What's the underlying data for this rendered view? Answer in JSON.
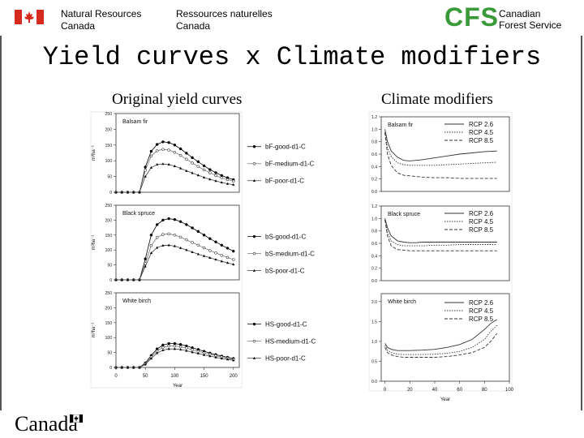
{
  "header": {
    "dept_en": "Natural Resources\nCanada",
    "dept_fr": "Ressources naturelles\nCanada",
    "cfs_logo": "CFS",
    "cfs_name": "Canadian\nForest Service",
    "flag_icon": "canada-flag-icon"
  },
  "title": "Yield curves x Climate modifiers",
  "left_heading": "Original yield curves",
  "right_heading": "Climate modifiers",
  "footer": {
    "wordmark": "Canada"
  },
  "colors": {
    "cfs_green": "#3a9a3a",
    "flag_red": "#d52b1e"
  },
  "chart_data": [
    {
      "type": "line",
      "panel": "Balsam fir",
      "ylabel": "m³ha⁻¹",
      "xlabel": "Year",
      "xlim": [
        0,
        210
      ],
      "ylim": [
        0,
        250
      ],
      "xticks": [
        0,
        50,
        100,
        150,
        200
      ],
      "yticks": [
        0,
        50,
        100,
        150,
        200,
        250
      ],
      "x": [
        0,
        10,
        20,
        30,
        40,
        50,
        60,
        70,
        80,
        90,
        100,
        110,
        120,
        130,
        140,
        150,
        160,
        170,
        180,
        190,
        200
      ],
      "series": [
        {
          "name": "bF-good-d1-C",
          "marker": "circle-filled",
          "values": [
            0,
            0,
            0,
            0,
            0,
            80,
            130,
            152,
            160,
            158,
            150,
            138,
            124,
            110,
            97,
            84,
            72,
            62,
            53,
            46,
            40
          ]
        },
        {
          "name": "bF-medium-d1-C",
          "marker": "circle-open",
          "values": [
            0,
            0,
            0,
            0,
            0,
            70,
            115,
            132,
            136,
            134,
            127,
            117,
            105,
            93,
            82,
            71,
            62,
            53,
            46,
            40,
            35
          ]
        },
        {
          "name": "bF-poor-d1-C",
          "marker": "triangle",
          "values": [
            0,
            0,
            0,
            0,
            0,
            50,
            78,
            88,
            90,
            88,
            83,
            76,
            68,
            61,
            54,
            47,
            41,
            36,
            31,
            27,
            24
          ]
        }
      ]
    },
    {
      "type": "line",
      "panel": "Black spruce",
      "ylabel": "m³ha⁻¹",
      "xlabel": "Year",
      "xlim": [
        0,
        210
      ],
      "ylim": [
        0,
        250
      ],
      "xticks": [
        0,
        50,
        100,
        150,
        200
      ],
      "yticks": [
        0,
        50,
        100,
        150,
        200,
        250
      ],
      "x": [
        0,
        10,
        20,
        30,
        40,
        50,
        60,
        70,
        80,
        90,
        100,
        110,
        120,
        130,
        140,
        150,
        160,
        170,
        180,
        190,
        200
      ],
      "series": [
        {
          "name": "bS-good-d1-C",
          "marker": "circle-filled",
          "values": [
            0,
            0,
            0,
            0,
            0,
            70,
            150,
            185,
            200,
            205,
            202,
            195,
            185,
            174,
            162,
            150,
            138,
            127,
            116,
            106,
            96
          ]
        },
        {
          "name": "bS-medium-d1-C",
          "marker": "circle-open",
          "values": [
            0,
            0,
            0,
            0,
            0,
            55,
            115,
            142,
            152,
            154,
            150,
            143,
            134,
            125,
            116,
            107,
            98,
            90,
            82,
            75,
            68
          ]
        },
        {
          "name": "bS-poor-d1-C",
          "marker": "triangle",
          "values": [
            0,
            0,
            0,
            0,
            0,
            45,
            90,
            108,
            115,
            116,
            113,
            107,
            100,
            93,
            86,
            80,
            74,
            68,
            62,
            57,
            52
          ]
        }
      ]
    },
    {
      "type": "line",
      "panel": "White birch",
      "ylabel": "m³ha⁻¹",
      "xlabel": "Year",
      "xlim": [
        0,
        210
      ],
      "ylim": [
        0,
        250
      ],
      "xticks": [
        0,
        50,
        100,
        150,
        200
      ],
      "yticks": [
        0,
        50,
        100,
        150,
        200,
        250
      ],
      "x": [
        0,
        10,
        20,
        30,
        40,
        50,
        60,
        70,
        80,
        90,
        100,
        110,
        120,
        130,
        140,
        150,
        160,
        170,
        180,
        190,
        200
      ],
      "series": [
        {
          "name": "HS-good-d1-C",
          "marker": "circle-filled",
          "values": [
            0,
            0,
            0,
            0,
            0,
            15,
            40,
            62,
            75,
            80,
            80,
            77,
            72,
            66,
            60,
            54,
            48,
            43,
            38,
            34,
            30
          ]
        },
        {
          "name": "HS-medium-d1-C",
          "marker": "circle-open",
          "values": [
            0,
            0,
            0,
            0,
            0,
            12,
            35,
            55,
            67,
            72,
            72,
            69,
            65,
            59,
            54,
            49,
            44,
            39,
            35,
            31,
            27
          ]
        },
        {
          "name": "HS-poor-d1-C",
          "marker": "triangle",
          "values": [
            0,
            0,
            0,
            0,
            0,
            10,
            30,
            48,
            58,
            62,
            62,
            60,
            56,
            51,
            47,
            42,
            38,
            34,
            30,
            27,
            24
          ]
        }
      ]
    },
    {
      "type": "line",
      "panel": "Balsam fir",
      "xlabel": "Year",
      "xlim": [
        -3,
        100
      ],
      "ylim": [
        0,
        1.2
      ],
      "xticks": [
        0,
        20,
        40,
        60,
        80,
        100
      ],
      "yticks": [
        0.0,
        0.2,
        0.4,
        0.6,
        0.8,
        1.0,
        1.2
      ],
      "x": [
        0,
        2,
        5,
        10,
        15,
        20,
        25,
        30,
        40,
        50,
        60,
        70,
        80,
        90
      ],
      "series": [
        {
          "name": "RCP 2.6",
          "dash": "solid",
          "values": [
            1.0,
            0.8,
            0.65,
            0.55,
            0.5,
            0.49,
            0.5,
            0.51,
            0.54,
            0.57,
            0.6,
            0.62,
            0.64,
            0.65
          ]
        },
        {
          "name": "RCP 4.5",
          "dash": "dotted",
          "values": [
            0.95,
            0.7,
            0.56,
            0.46,
            0.43,
            0.42,
            0.42,
            0.42,
            0.42,
            0.43,
            0.44,
            0.45,
            0.46,
            0.47
          ]
        },
        {
          "name": "RCP 8.5",
          "dash": "dashed",
          "values": [
            0.95,
            0.6,
            0.42,
            0.3,
            0.26,
            0.25,
            0.24,
            0.23,
            0.22,
            0.22,
            0.21,
            0.21,
            0.21,
            0.21
          ]
        }
      ]
    },
    {
      "type": "line",
      "panel": "Black spruce",
      "xlabel": "Year",
      "xlim": [
        -3,
        100
      ],
      "ylim": [
        0,
        1.2
      ],
      "xticks": [
        0,
        20,
        40,
        60,
        80,
        100
      ],
      "yticks": [
        0.0,
        0.2,
        0.4,
        0.6,
        0.8,
        1.0,
        1.2
      ],
      "x": [
        0,
        2,
        5,
        10,
        15,
        20,
        25,
        30,
        40,
        50,
        60,
        70,
        80,
        90
      ],
      "series": [
        {
          "name": "RCP 2.6",
          "dash": "solid",
          "values": [
            1.0,
            0.85,
            0.72,
            0.64,
            0.62,
            0.61,
            0.61,
            0.62,
            0.62,
            0.62,
            0.62,
            0.62,
            0.62,
            0.62
          ]
        },
        {
          "name": "RCP 4.5",
          "dash": "dotted",
          "values": [
            0.98,
            0.78,
            0.64,
            0.58,
            0.56,
            0.56,
            0.56,
            0.56,
            0.57,
            0.57,
            0.58,
            0.58,
            0.58,
            0.58
          ]
        },
        {
          "name": "RCP 8.5",
          "dash": "dashed",
          "values": [
            0.98,
            0.72,
            0.56,
            0.5,
            0.49,
            0.48,
            0.48,
            0.48,
            0.48,
            0.48,
            0.48,
            0.48,
            0.48,
            0.48
          ]
        }
      ]
    },
    {
      "type": "line",
      "panel": "White birch",
      "xlabel": "Year",
      "xlim": [
        -3,
        100
      ],
      "ylim": [
        0,
        2.2
      ],
      "xticks": [
        0,
        20,
        40,
        60,
        80,
        100
      ],
      "yticks": [
        0.0,
        0.5,
        1.0,
        1.5,
        2.0
      ],
      "x": [
        0,
        2,
        5,
        10,
        15,
        20,
        30,
        40,
        50,
        60,
        70,
        80,
        85,
        90
      ],
      "series": [
        {
          "name": "RCP 2.6",
          "dash": "solid",
          "values": [
            0.95,
            0.85,
            0.8,
            0.77,
            0.77,
            0.77,
            0.78,
            0.8,
            0.85,
            0.92,
            1.05,
            1.3,
            1.45,
            1.55
          ]
        },
        {
          "name": "RCP 4.5",
          "dash": "dotted",
          "values": [
            0.9,
            0.78,
            0.72,
            0.68,
            0.67,
            0.67,
            0.67,
            0.68,
            0.7,
            0.75,
            0.85,
            1.05,
            1.25,
            1.4
          ]
        },
        {
          "name": "RCP 8.5",
          "dash": "dashed",
          "values": [
            0.85,
            0.72,
            0.66,
            0.62,
            0.6,
            0.6,
            0.6,
            0.6,
            0.62,
            0.66,
            0.72,
            0.85,
            1.0,
            1.2
          ]
        }
      ]
    }
  ]
}
